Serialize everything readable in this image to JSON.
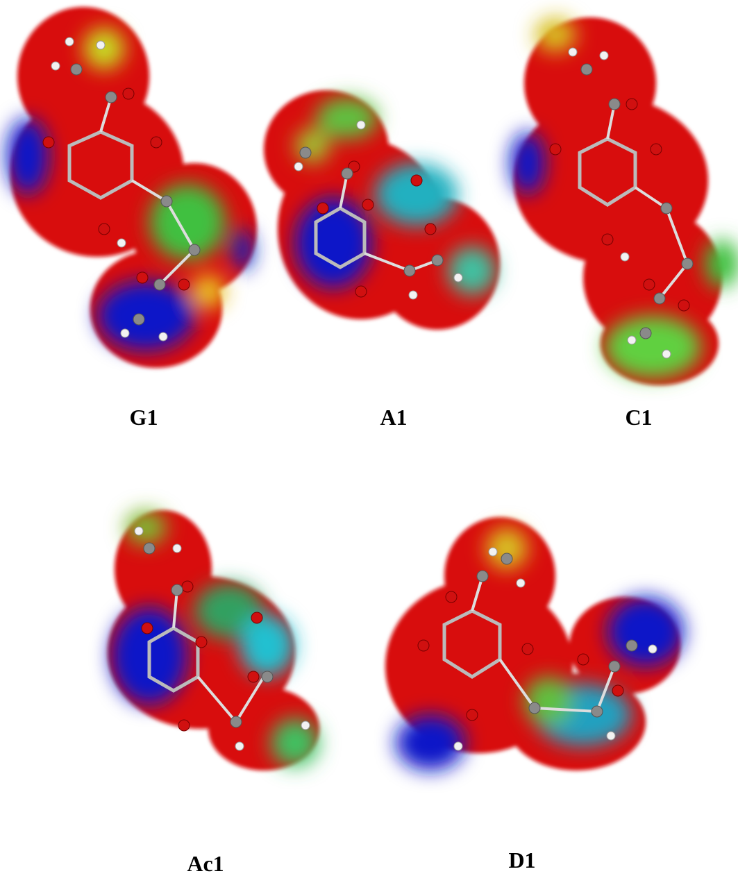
{
  "panels": [
    {
      "label": "G1"
    },
    {
      "label": "A1"
    },
    {
      "label": "C1"
    },
    {
      "label": "Ac1"
    },
    {
      "label": "D1"
    }
  ]
}
